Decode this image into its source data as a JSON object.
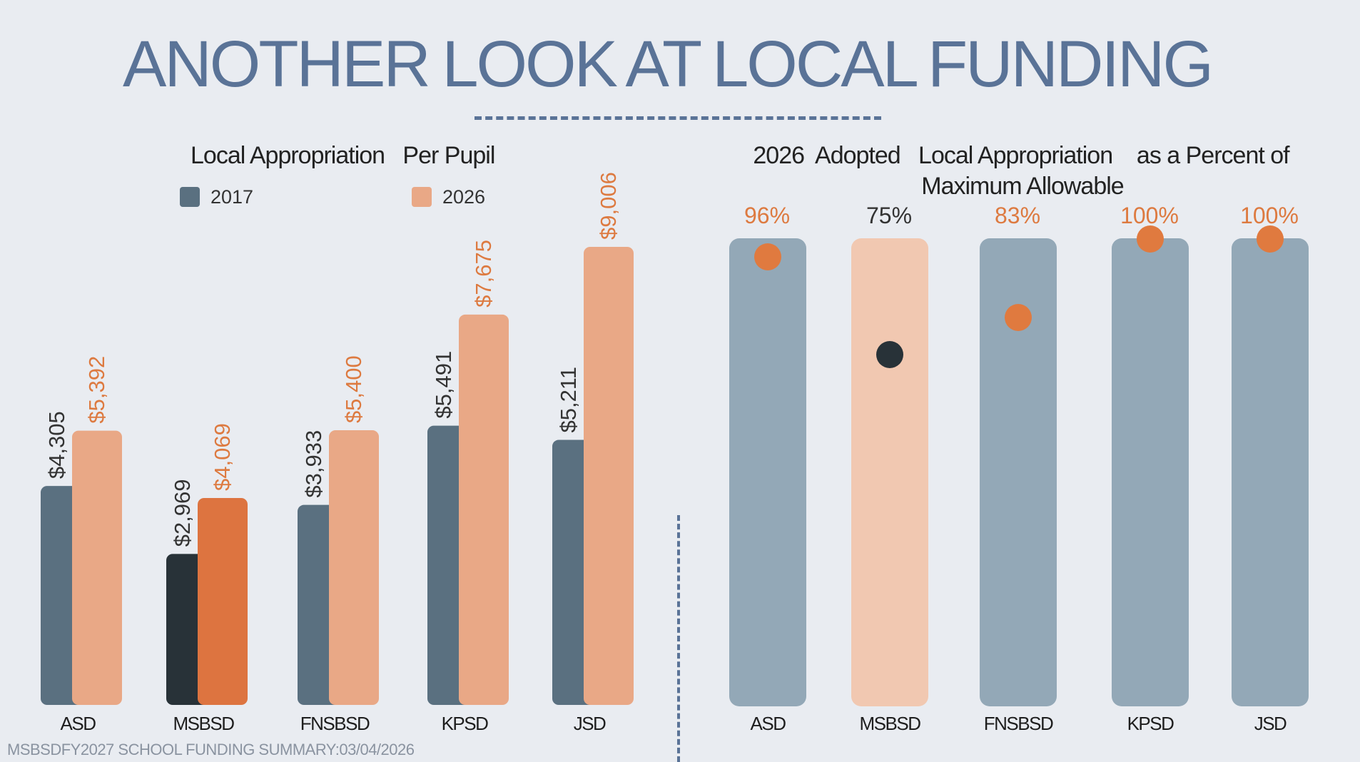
{
  "title": "ANOTHER LOOK AT LOCAL FUNDING",
  "footer": "MSBSDFY2027 SCHOOL  FUNDING  SUMMARY:03/04/2026",
  "colors": {
    "bar_2017": "#5a7080",
    "bar_2026": "#e9a886",
    "highlight_2017": "#283238",
    "highlight_2026": "#dd7440",
    "pct_bar": "#93a8b7",
    "pct_bar_highlight": "#f1c8b1",
    "dot": "#e07a3f",
    "dot_highlight": "#283238",
    "label_orange": "#dd7a40",
    "label_dark": "#333333"
  },
  "chart_data": [
    {
      "type": "bar",
      "title": "Local Appropriation   Per Pupil",
      "categories": [
        "ASD",
        "MSBSD",
        "FNSBSD",
        "KPSD",
        "JSD"
      ],
      "series": [
        {
          "name": "2017",
          "values": [
            4305,
            2969,
            3933,
            5491,
            5211
          ],
          "labels": [
            "$4,305",
            "$2,969",
            "$3,933",
            "$5,491",
            "$5,211"
          ]
        },
        {
          "name": "2026",
          "values": [
            5392,
            4069,
            5400,
            7675,
            9006
          ],
          "labels": [
            "$5,392",
            "$4,069",
            "$5,400",
            "$7,675",
            "$9,006"
          ]
        }
      ],
      "highlight_category": "MSBSD",
      "ylim": [
        0,
        9006
      ],
      "grid": false,
      "legend": "top-left"
    },
    {
      "type": "bar",
      "title": "2026  Adopted   Local Appropriation    as a Percent of",
      "subtitle": "Maximum Allowable",
      "categories": [
        "ASD",
        "MSBSD",
        "FNSBSD",
        "KPSD",
        "JSD"
      ],
      "values": [
        96,
        75,
        83,
        100,
        100
      ],
      "labels": [
        "96%",
        "75%",
        "83%",
        "100%",
        "100%"
      ],
      "highlight_category": "MSBSD",
      "ylim": [
        0,
        100
      ],
      "grid": false
    }
  ]
}
